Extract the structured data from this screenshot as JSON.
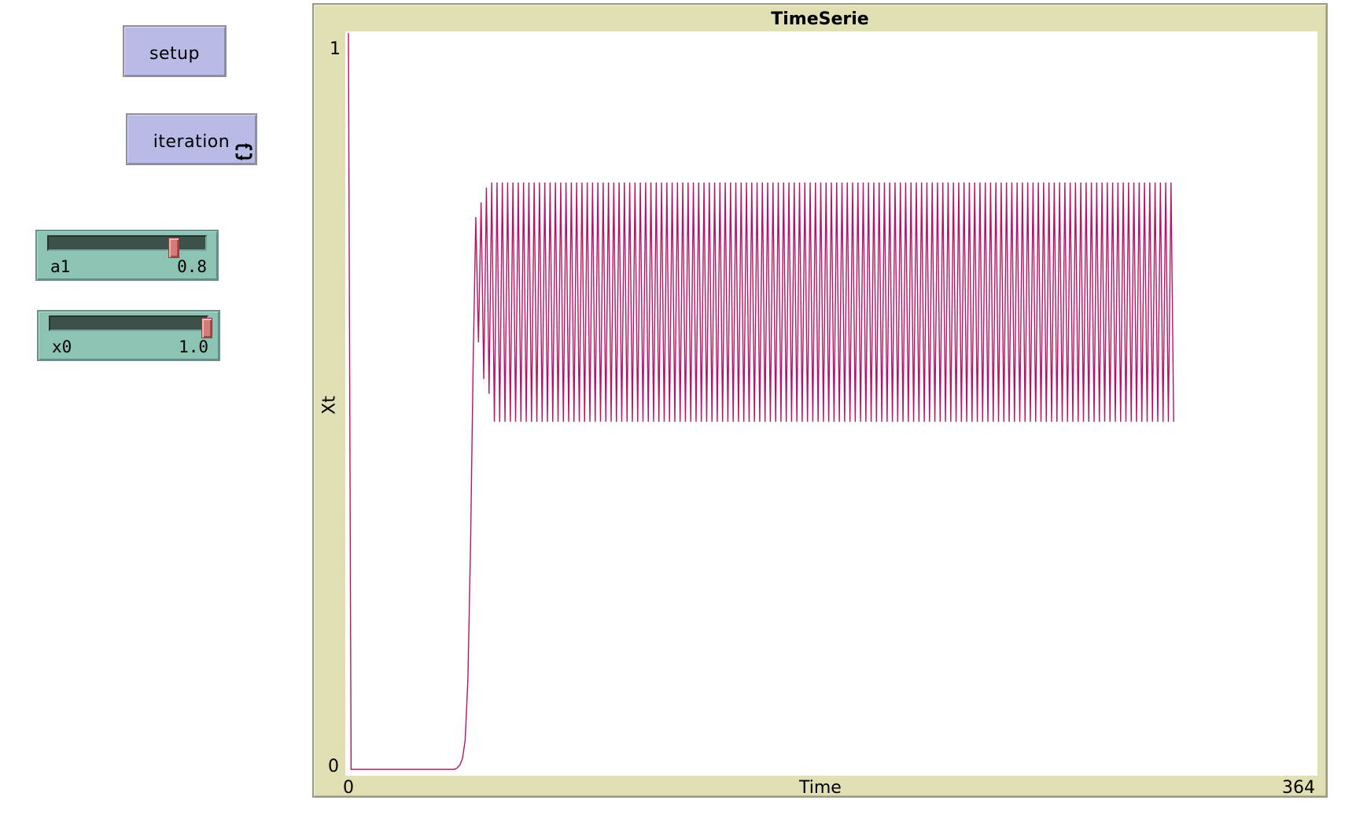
{
  "buttons": {
    "setup": {
      "label": "setup"
    },
    "iteration": {
      "label": "iteration",
      "icon": "forever-loop-icon"
    }
  },
  "sliders": [
    {
      "name": "a1",
      "value": "0.8",
      "fraction": 0.8
    },
    {
      "name": "x0",
      "value": "1.0",
      "fraction": 1.0
    }
  ],
  "colors": {
    "button": "#babae6",
    "slider": "#8cc3b4",
    "plot_frame": "#e0e0b4",
    "series": "#b3156b"
  },
  "plot": {
    "title": "TimeSerie",
    "xlabel": "Time",
    "ylabel": "Xt",
    "x_min_label": "0",
    "x_max_label": "364",
    "y_min_label": "0",
    "y_max_label": "1"
  },
  "chart_data": {
    "type": "line",
    "title": "TimeSerie",
    "xlabel": "Time",
    "ylabel": "Xt",
    "xlim": [
      0,
      364
    ],
    "ylim": [
      0,
      1
    ],
    "grid": false,
    "legend": "none",
    "series": [
      {
        "color": "#b3156b",
        "points": [
          [
            0,
            1.0
          ],
          [
            1,
            0.0
          ],
          [
            40,
            0.0
          ],
          [
            41,
            0.002
          ],
          [
            42,
            0.006
          ],
          [
            43,
            0.015
          ],
          [
            44,
            0.04
          ],
          [
            45,
            0.12
          ],
          [
            46,
            0.3
          ],
          [
            47,
            0.55
          ],
          [
            48,
            0.75
          ],
          [
            49,
            0.58
          ],
          [
            50,
            0.77
          ],
          [
            51,
            0.53
          ],
          [
            52,
            0.79
          ],
          [
            53,
            0.51
          ]
        ],
        "oscillation": {
          "from": 53,
          "to": 364,
          "high": 0.797,
          "low": 0.472,
          "end": 311
        }
      }
    ]
  }
}
